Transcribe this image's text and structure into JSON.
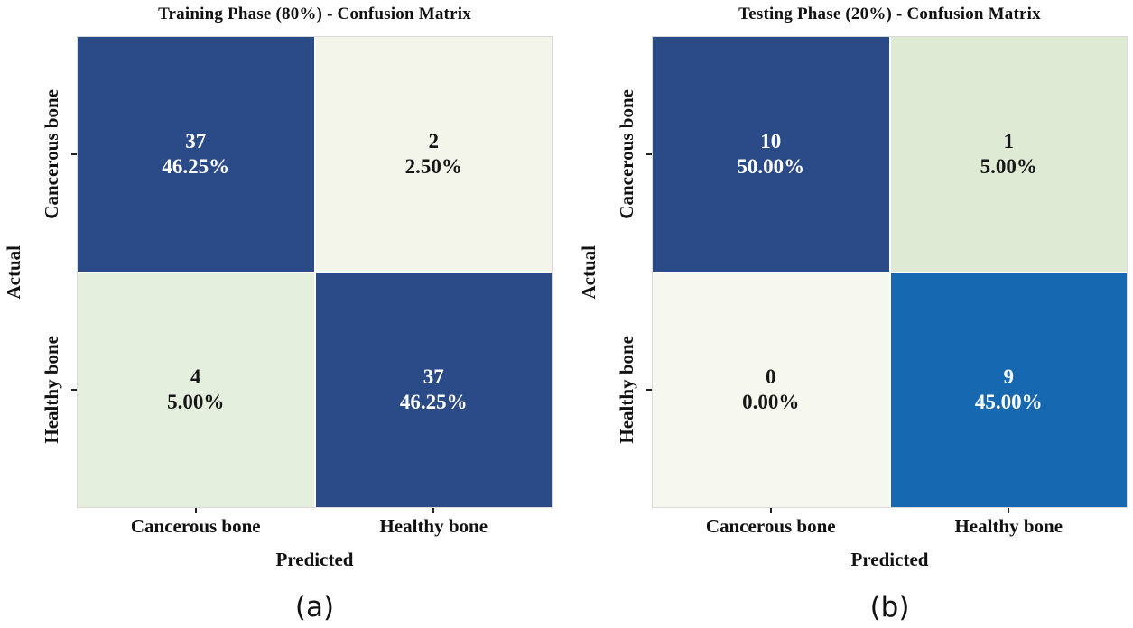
{
  "panel_labels": [
    "(a)",
    "(b)"
  ],
  "chart_data": [
    {
      "type": "heatmap",
      "title": "Training Phase (80%) - Confusion Matrix",
      "xlabel": "Predicted",
      "ylabel": "Actual",
      "x_categories": [
        "Cancerous bone",
        "Healthy bone"
      ],
      "y_categories": [
        "Cancerous bone",
        "Healthy bone"
      ],
      "counts": [
        [
          37,
          2
        ],
        [
          4,
          37
        ]
      ],
      "percent_labels": [
        [
          "46.25%",
          "2.50%"
        ],
        [
          "5.00%",
          "46.25%"
        ]
      ],
      "cell_colors": [
        [
          "#2b4a88",
          "#f3f5eb"
        ],
        [
          "#e5efdd",
          "#2b4a88"
        ]
      ],
      "cell_text_colors": [
        [
          "#ffffff",
          "#161616"
        ],
        [
          "#161616",
          "#ffffff"
        ]
      ]
    },
    {
      "type": "heatmap",
      "title": "Testing Phase (20%) - Confusion Matrix",
      "xlabel": "Predicted",
      "ylabel": "Actual",
      "x_categories": [
        "Cancerous bone",
        "Healthy bone"
      ],
      "y_categories": [
        "Cancerous bone",
        "Healthy bone"
      ],
      "counts": [
        [
          10,
          1
        ],
        [
          0,
          9
        ]
      ],
      "percent_labels": [
        [
          "50.00%",
          "5.00%"
        ],
        [
          "0.00%",
          "45.00%"
        ]
      ],
      "cell_colors": [
        [
          "#2b4a88",
          "#dfead5"
        ],
        [
          "#f6f8ef",
          "#1669b1"
        ]
      ],
      "cell_text_colors": [
        [
          "#ffffff",
          "#161616"
        ],
        [
          "#161616",
          "#ffffff"
        ]
      ]
    }
  ]
}
